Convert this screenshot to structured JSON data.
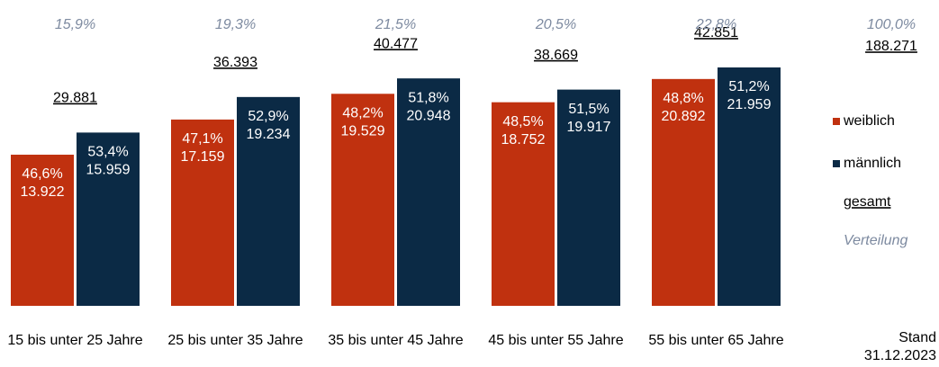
{
  "chart_data": {
    "type": "bar",
    "categories": [
      "15 bis unter 25 Jahre",
      "25 bis unter 35 Jahre",
      "35 bis unter 45 Jahre",
      "45 bis unter 55 Jahre",
      "55 bis unter 65 Jahre"
    ],
    "series": [
      {
        "name": "weiblich",
        "color": "#c0310f",
        "values": [
          13922,
          17159,
          19529,
          18752,
          20892
        ],
        "value_labels": [
          "13.922",
          "17.159",
          "19.529",
          "18.752",
          "20.892"
        ],
        "shares": [
          46.6,
          47.1,
          48.2,
          48.5,
          48.8
        ],
        "share_labels": [
          "46,6%",
          "47,1%",
          "48,2%",
          "48,5%",
          "48,8%"
        ]
      },
      {
        "name": "männlich",
        "color": "#0b2a45",
        "values": [
          15959,
          19234,
          20948,
          19917,
          21959
        ],
        "value_labels": [
          "15.959",
          "19.234",
          "20.948",
          "19.917",
          "21.959"
        ],
        "shares": [
          53.4,
          52.9,
          51.8,
          51.5,
          51.2
        ],
        "share_labels": [
          "53,4%",
          "52,9%",
          "51,8%",
          "51,5%",
          "51,2%"
        ]
      }
    ],
    "totals": [
      29881,
      36393,
      40477,
      38669,
      42851
    ],
    "total_labels": [
      "29.881",
      "36.393",
      "40.477",
      "38.669",
      "42.851"
    ],
    "distribution": [
      15.9,
      19.3,
      21.5,
      20.5,
      22.8
    ],
    "distribution_labels": [
      "15,9%",
      "19,3%",
      "21,5%",
      "20,5%",
      "22,8%"
    ],
    "overall_total": {
      "value": 188271,
      "label": "188.271"
    },
    "overall_distribution": {
      "value": 100.0,
      "label": "100,0%"
    },
    "legend_total": "gesamt",
    "legend_distribution": "Verteilung",
    "note": "Stand",
    "date": "31.12.2023"
  }
}
